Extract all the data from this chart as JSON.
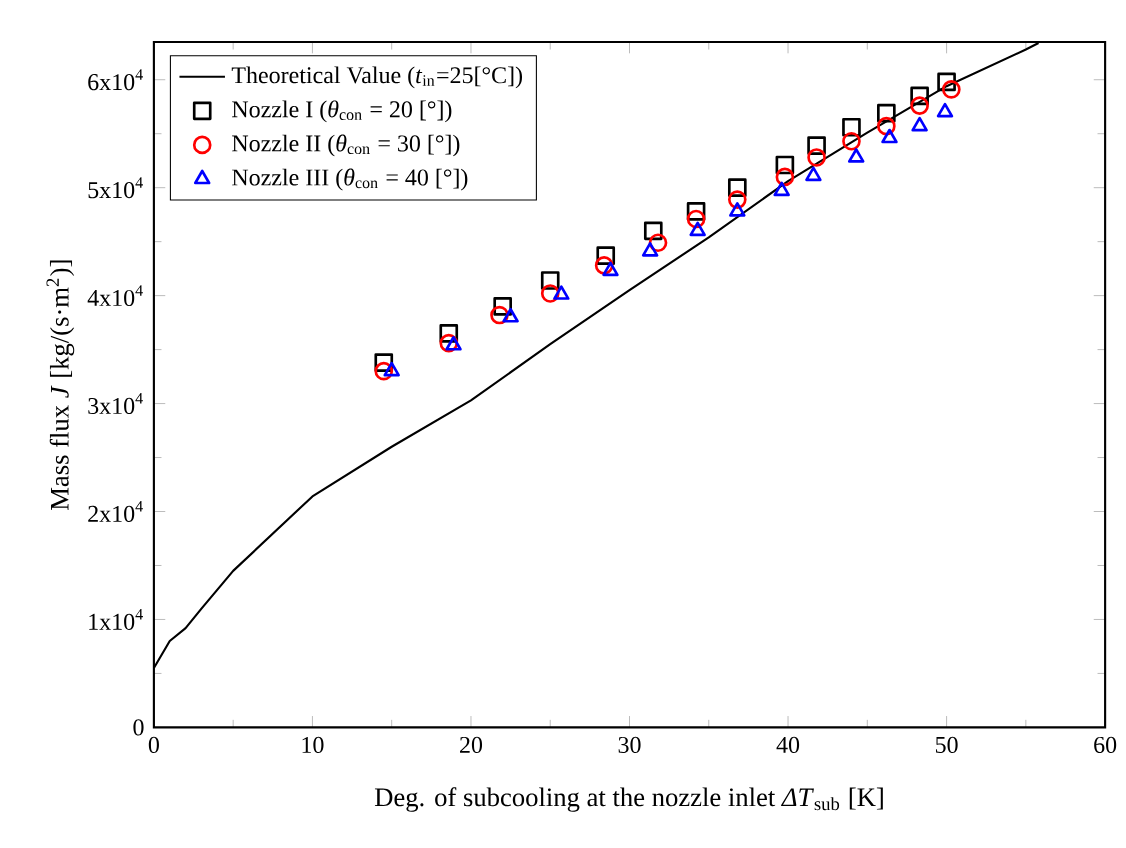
{
  "chart_data": {
    "type": "scatter",
    "xlabel": "Deg. of subcooling at the nozzle inlet *ΔT*$_{sub}$ [K]",
    "ylabel": "Mass flux *J* [kg/(s·m$^{2}$)]",
    "xlim": [
      0,
      60
    ],
    "xticks": [
      0,
      10,
      20,
      30,
      40,
      50,
      60
    ],
    "ylim": [
      0,
      63500
    ],
    "yticks": [
      0,
      {
        "value": 10000,
        "label": "1x10$^{4}$"
      },
      {
        "value": 20000,
        "label": "2x10$^{4}$"
      },
      {
        "value": 30000,
        "label": "3x10$^{4}$"
      },
      {
        "value": 40000,
        "label": "4x10$^{4}$"
      },
      {
        "value": 50000,
        "label": "5x10$^{4}$"
      },
      {
        "value": 60000,
        "label": "6x10$^{4}$"
      }
    ],
    "legend": "top left",
    "grid": false,
    "series": [
      {
        "name": "Theoretical Value (*t*$_{in}$=25[°C])",
        "type": "line",
        "marker": "none",
        "line_style": "solid",
        "color": "#000000",
        "x": [
          0,
          1,
          2,
          3,
          5,
          10,
          15,
          20,
          25,
          30,
          35,
          40,
          45,
          50,
          55,
          55.8
        ],
        "values": [
          5500,
          8000,
          9200,
          11000,
          14500,
          21400,
          26000,
          30300,
          35500,
          40500,
          45400,
          50600,
          55100,
          59400,
          62800,
          63400
        ]
      },
      {
        "name": "Nozzle I  (*θ*$_{con}$ = 20 [°])",
        "marker": "square",
        "color": "#000000",
        "x": [
          14.5,
          18.6,
          22,
          25,
          28.5,
          31.5,
          34.2,
          36.8,
          39.8,
          41.8,
          44,
          46.2,
          48.3,
          50
        ],
        "values": [
          33800,
          36500,
          39000,
          41400,
          43700,
          46000,
          47800,
          50000,
          52100,
          53900,
          55600,
          56900,
          58500,
          59800
        ]
      },
      {
        "name": "Nozzle II  (*θ*$_{con}$ = 30 [°])",
        "marker": "circle",
        "color": "#ff0000",
        "x": [
          14.5,
          18.6,
          21.8,
          25,
          28.4,
          31.8,
          34.2,
          36.8,
          39.8,
          41.8,
          44,
          46.2,
          48.3,
          50.3
        ],
        "values": [
          33000,
          35600,
          38200,
          40200,
          42800,
          44900,
          47100,
          48900,
          51000,
          52800,
          54300,
          55700,
          57600,
          59100
        ]
      },
      {
        "name": "Nozzle III (*θ*$_{con}$ = 40 [°])",
        "marker": "triangle",
        "color": "#0000ff",
        "x": [
          15,
          18.9,
          22.5,
          25.7,
          28.8,
          31.3,
          34.3,
          36.8,
          39.6,
          41.6,
          44.3,
          46.4,
          48.3,
          49.9
        ],
        "values": [
          33000,
          35400,
          38000,
          40100,
          42300,
          44100,
          46000,
          47800,
          49700,
          51100,
          52800,
          54600,
          55700,
          57000
        ]
      }
    ]
  }
}
